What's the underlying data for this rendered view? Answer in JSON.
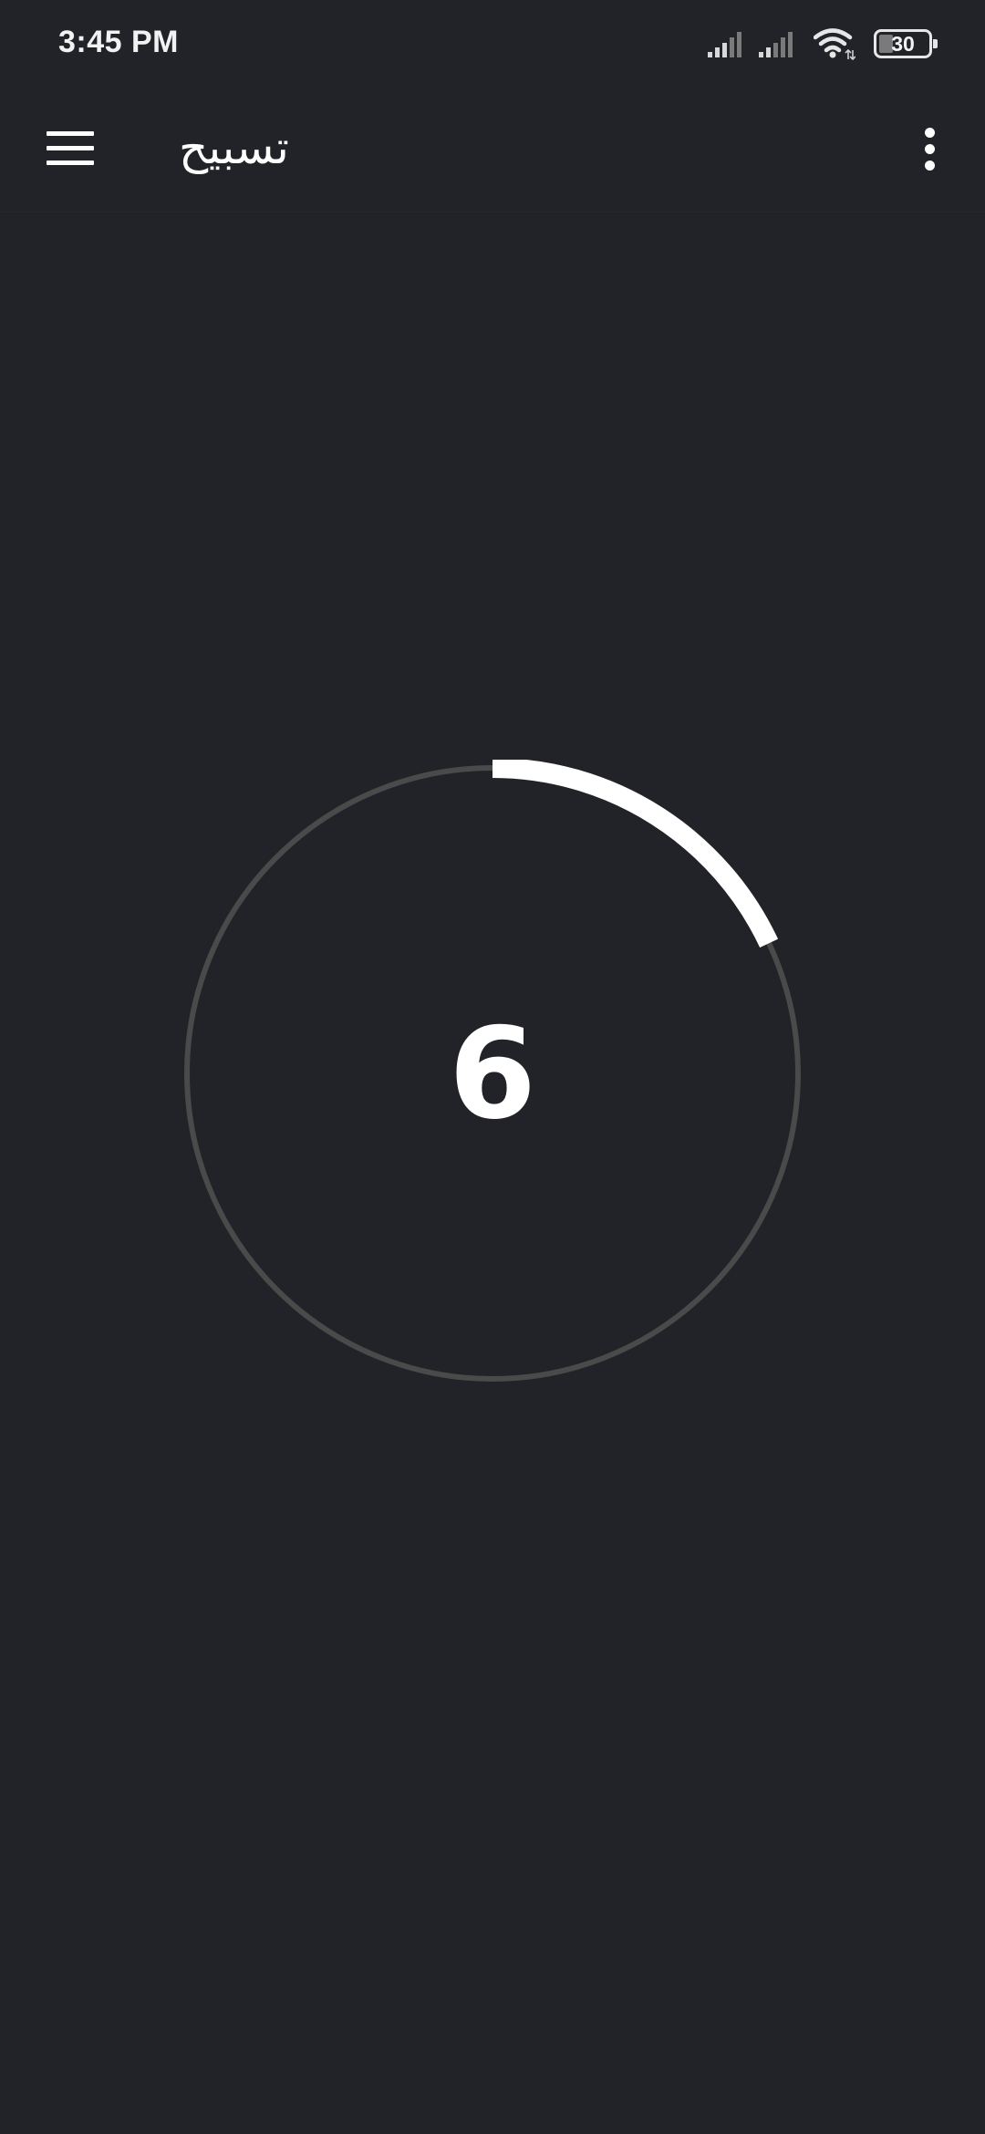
{
  "status_bar": {
    "time": "3:45 PM",
    "battery_level": "30",
    "icons": [
      "signal-icon",
      "signal-icon",
      "wifi-icon",
      "battery-icon"
    ]
  },
  "app_bar": {
    "title": "تسبيح",
    "icons": [
      "menu-icon",
      "more-vertical-icon"
    ]
  },
  "counter": {
    "value": "6",
    "progress_fraction": 0.18,
    "colors": {
      "progress": "#ffffff",
      "track": "#4a4a4a",
      "background": "#212328"
    }
  }
}
